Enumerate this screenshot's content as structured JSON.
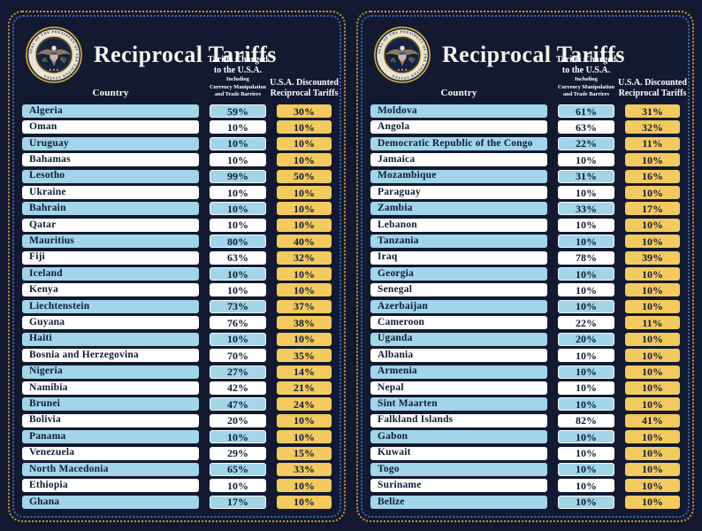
{
  "colors": {
    "background": "#121931",
    "row_blue": "#a2d5e8",
    "row_white": "#ffffff",
    "gold": "#f2ca5e",
    "text_navy": "#101b36",
    "border_gold": "#c9992e",
    "border_blue": "#3e67b1",
    "title_white": "#f4f1ea"
  },
  "seal_text": "SEAL OF THE PRESIDENT OF THE UNITED STATES",
  "panels": [
    {
      "title": "Reciprocal Tariffs",
      "columns": {
        "country": "Country",
        "charged_line1": "Tariffs Charged",
        "charged_line2": "to the U.S.A.",
        "charged_sub1": "Including",
        "charged_sub2": "Currency Manipulation",
        "charged_sub3": "and Trade Barriers",
        "discount_line1": "U.S.A. Discounted",
        "discount_line2": "Reciprocal Tariffs"
      },
      "rows": [
        {
          "country": "Algeria",
          "charged": "59%",
          "discount": "30%"
        },
        {
          "country": "Oman",
          "charged": "10%",
          "discount": "10%"
        },
        {
          "country": "Uruguay",
          "charged": "10%",
          "discount": "10%"
        },
        {
          "country": "Bahamas",
          "charged": "10%",
          "discount": "10%"
        },
        {
          "country": "Lesotho",
          "charged": "99%",
          "discount": "50%"
        },
        {
          "country": "Ukraine",
          "charged": "10%",
          "discount": "10%"
        },
        {
          "country": "Bahrain",
          "charged": "10%",
          "discount": "10%"
        },
        {
          "country": "Qatar",
          "charged": "10%",
          "discount": "10%"
        },
        {
          "country": "Mauritius",
          "charged": "80%",
          "discount": "40%"
        },
        {
          "country": "Fiji",
          "charged": "63%",
          "discount": "32%"
        },
        {
          "country": "Iceland",
          "charged": "10%",
          "discount": "10%"
        },
        {
          "country": "Kenya",
          "charged": "10%",
          "discount": "10%"
        },
        {
          "country": "Liechtenstein",
          "charged": "73%",
          "discount": "37%"
        },
        {
          "country": "Guyana",
          "charged": "76%",
          "discount": "38%"
        },
        {
          "country": "Haiti",
          "charged": "10%",
          "discount": "10%"
        },
        {
          "country": "Bosnia and Herzegovina",
          "charged": "70%",
          "discount": "35%"
        },
        {
          "country": "Nigeria",
          "charged": "27%",
          "discount": "14%"
        },
        {
          "country": "Namibia",
          "charged": "42%",
          "discount": "21%"
        },
        {
          "country": "Brunei",
          "charged": "47%",
          "discount": "24%"
        },
        {
          "country": "Bolivia",
          "charged": "20%",
          "discount": "10%"
        },
        {
          "country": "Panama",
          "charged": "10%",
          "discount": "10%"
        },
        {
          "country": "Venezuela",
          "charged": "29%",
          "discount": "15%"
        },
        {
          "country": "North Macedonia",
          "charged": "65%",
          "discount": "33%"
        },
        {
          "country": "Ethiopia",
          "charged": "10%",
          "discount": "10%"
        },
        {
          "country": "Ghana",
          "charged": "17%",
          "discount": "10%"
        }
      ]
    },
    {
      "title": "Reciprocal Tariffs",
      "columns": {
        "country": "Country",
        "charged_line1": "Tariffs Charged",
        "charged_line2": "to the U.S.A.",
        "charged_sub1": "Including",
        "charged_sub2": "Currency Manipulation",
        "charged_sub3": "and Trade Barriers",
        "discount_line1": "U.S.A. Discounted",
        "discount_line2": "Reciprocal Tariffs"
      },
      "rows": [
        {
          "country": "Moldova",
          "charged": "61%",
          "discount": "31%"
        },
        {
          "country": "Angola",
          "charged": "63%",
          "discount": "32%"
        },
        {
          "country": "Democratic Republic of the Congo",
          "charged": "22%",
          "discount": "11%"
        },
        {
          "country": "Jamaica",
          "charged": "10%",
          "discount": "10%"
        },
        {
          "country": "Mozambique",
          "charged": "31%",
          "discount": "16%"
        },
        {
          "country": "Paraguay",
          "charged": "10%",
          "discount": "10%"
        },
        {
          "country": "Zambia",
          "charged": "33%",
          "discount": "17%"
        },
        {
          "country": "Lebanon",
          "charged": "10%",
          "discount": "10%"
        },
        {
          "country": "Tanzania",
          "charged": "10%",
          "discount": "10%"
        },
        {
          "country": "Iraq",
          "charged": "78%",
          "discount": "39%"
        },
        {
          "country": "Georgia",
          "charged": "10%",
          "discount": "10%"
        },
        {
          "country": "Senegal",
          "charged": "10%",
          "discount": "10%"
        },
        {
          "country": "Azerbaijan",
          "charged": "10%",
          "discount": "10%"
        },
        {
          "country": "Cameroon",
          "charged": "22%",
          "discount": "11%"
        },
        {
          "country": "Uganda",
          "charged": "20%",
          "discount": "10%"
        },
        {
          "country": "Albania",
          "charged": "10%",
          "discount": "10%"
        },
        {
          "country": "Armenia",
          "charged": "10%",
          "discount": "10%"
        },
        {
          "country": "Nepal",
          "charged": "10%",
          "discount": "10%"
        },
        {
          "country": "Sint Maarten",
          "charged": "10%",
          "discount": "10%"
        },
        {
          "country": "Falkland Islands",
          "charged": "82%",
          "discount": "41%"
        },
        {
          "country": "Gabon",
          "charged": "10%",
          "discount": "10%"
        },
        {
          "country": "Kuwait",
          "charged": "10%",
          "discount": "10%"
        },
        {
          "country": "Togo",
          "charged": "10%",
          "discount": "10%"
        },
        {
          "country": "Suriname",
          "charged": "10%",
          "discount": "10%"
        },
        {
          "country": "Belize",
          "charged": "10%",
          "discount": "10%"
        }
      ]
    }
  ]
}
